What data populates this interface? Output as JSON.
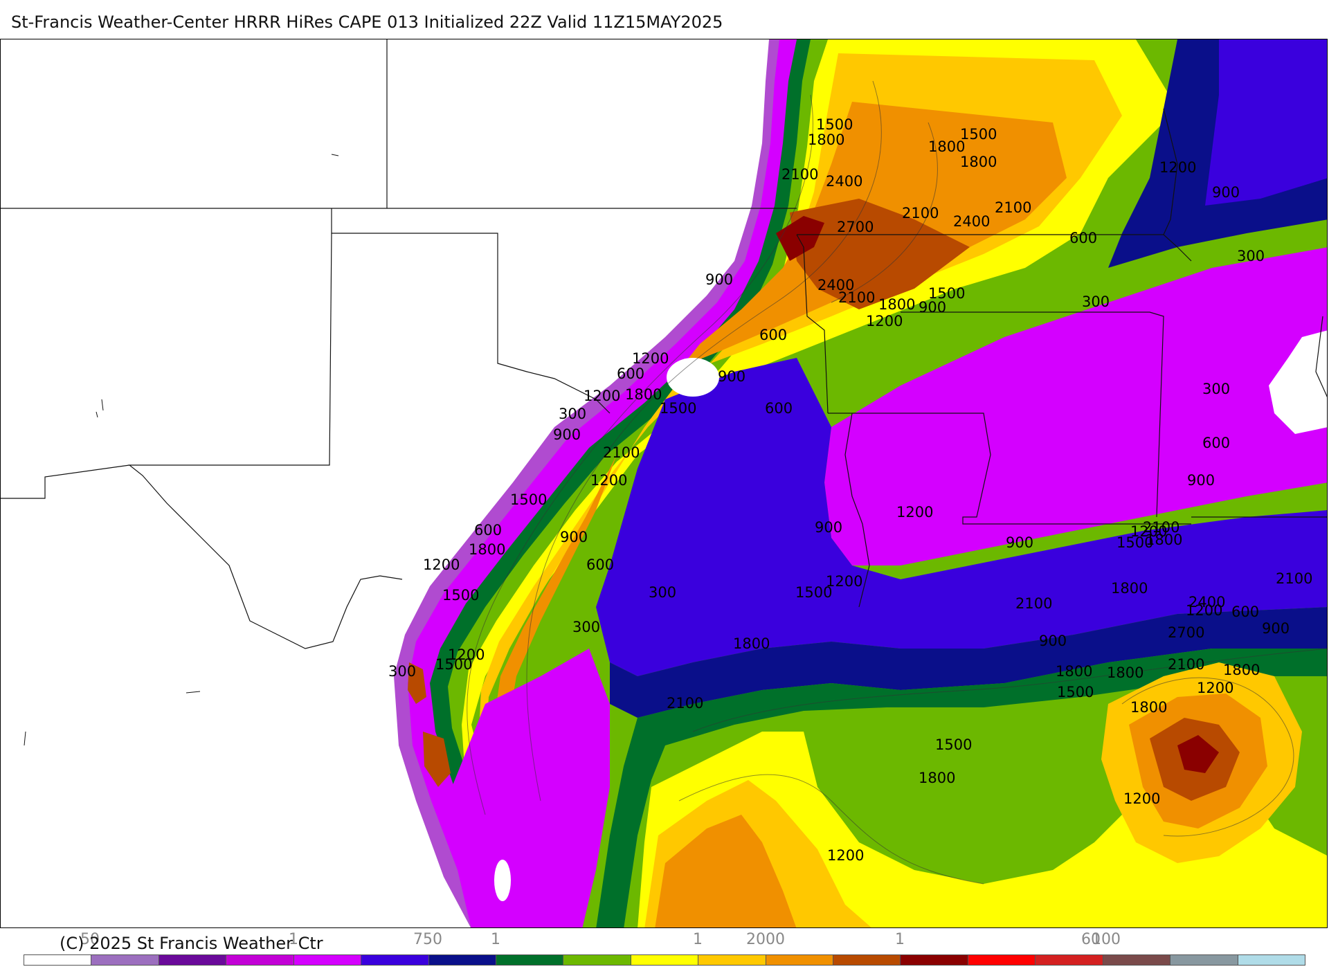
{
  "header": {
    "title": "St-Francis Weather-Center HRRR HiRes CAPE  013 Initialized  22Z Valid 11Z15MAY2025"
  },
  "footer": {
    "copyright": "(C) 2025 St Francis Weather Ctr",
    "tick_labels": [
      "50",
      "1",
      "750",
      "1",
      "1",
      "2000",
      "1",
      "60",
      "100"
    ]
  },
  "legend": {
    "colors": [
      "#ffffff",
      "#9c6fbf",
      "#6a0a9a",
      "#c200d6",
      "#d400ff",
      "#3a00dd",
      "#0a0f8a",
      "#00702a",
      "#6cb800",
      "#ffff00",
      "#ffc800",
      "#f09000",
      "#b84a00",
      "#8a0000",
      "#ff0000",
      "#d42020",
      "#7a4a4a",
      "#8898a0",
      "#b0dce8"
    ]
  },
  "map": {
    "contour_labels": [
      "1500",
      "1800",
      "1500",
      "1800",
      "1800",
      "2100",
      "2400",
      "2100",
      "2100",
      "2400",
      "2700",
      "1200",
      "900",
      "600",
      "900",
      "300",
      "300",
      "2400",
      "2100",
      "1800",
      "1500",
      "900",
      "1200",
      "600",
      "1200",
      "600",
      "900",
      "1200",
      "1800",
      "1500",
      "600",
      "300",
      "900",
      "2100",
      "300",
      "1200",
      "600",
      "1500",
      "900",
      "900",
      "600",
      "1800",
      "1200",
      "2100",
      "900",
      "1200",
      "600",
      "900",
      "300",
      "1500",
      "1500",
      "1200",
      "2100",
      "1800",
      "1200",
      "1800",
      "2100",
      "300",
      "1500",
      "1200",
      "900",
      "600",
      "300",
      "1800",
      "2100",
      "1500",
      "1800",
      "1800",
      "1800",
      "1200",
      "2400",
      "2700",
      "2100",
      "1800",
      "900",
      "1200",
      "1500",
      "1500",
      "1200",
      "1800",
      "1200"
    ]
  }
}
